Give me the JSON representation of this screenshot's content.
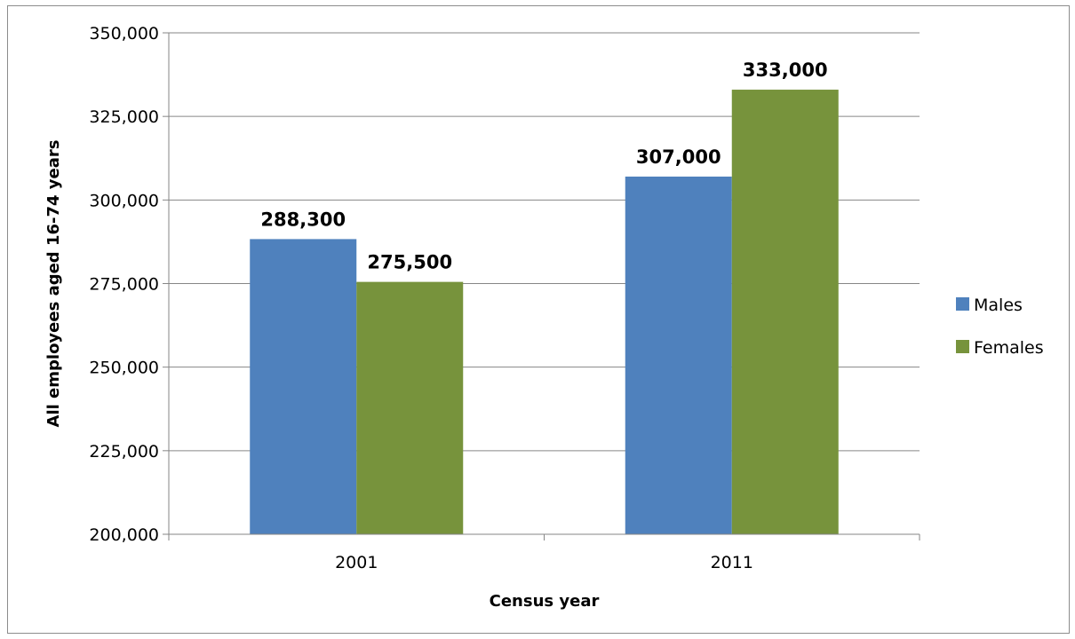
{
  "chart_data": {
    "type": "bar",
    "categories": [
      "2001",
      "2011"
    ],
    "series": [
      {
        "name": "Males",
        "values": [
          288300,
          307000
        ],
        "color": "#4f81bd"
      },
      {
        "name": "Females",
        "values": [
          275500,
          333000
        ],
        "color": "#77933c"
      }
    ],
    "data_labels": [
      [
        "288,300",
        "307,000"
      ],
      [
        "275,500",
        "333,000"
      ]
    ],
    "xlabel": "Census year",
    "ylabel": "All employees aged 16-74 years",
    "ylim": [
      200000,
      350000
    ],
    "yticks": [
      200000,
      225000,
      250000,
      275000,
      300000,
      325000,
      350000
    ],
    "ytick_labels": [
      "200,000",
      "225,000",
      "250,000",
      "275,000",
      "300,000",
      "325,000",
      "350,000"
    ],
    "grid": true,
    "legend_position": "right"
  }
}
